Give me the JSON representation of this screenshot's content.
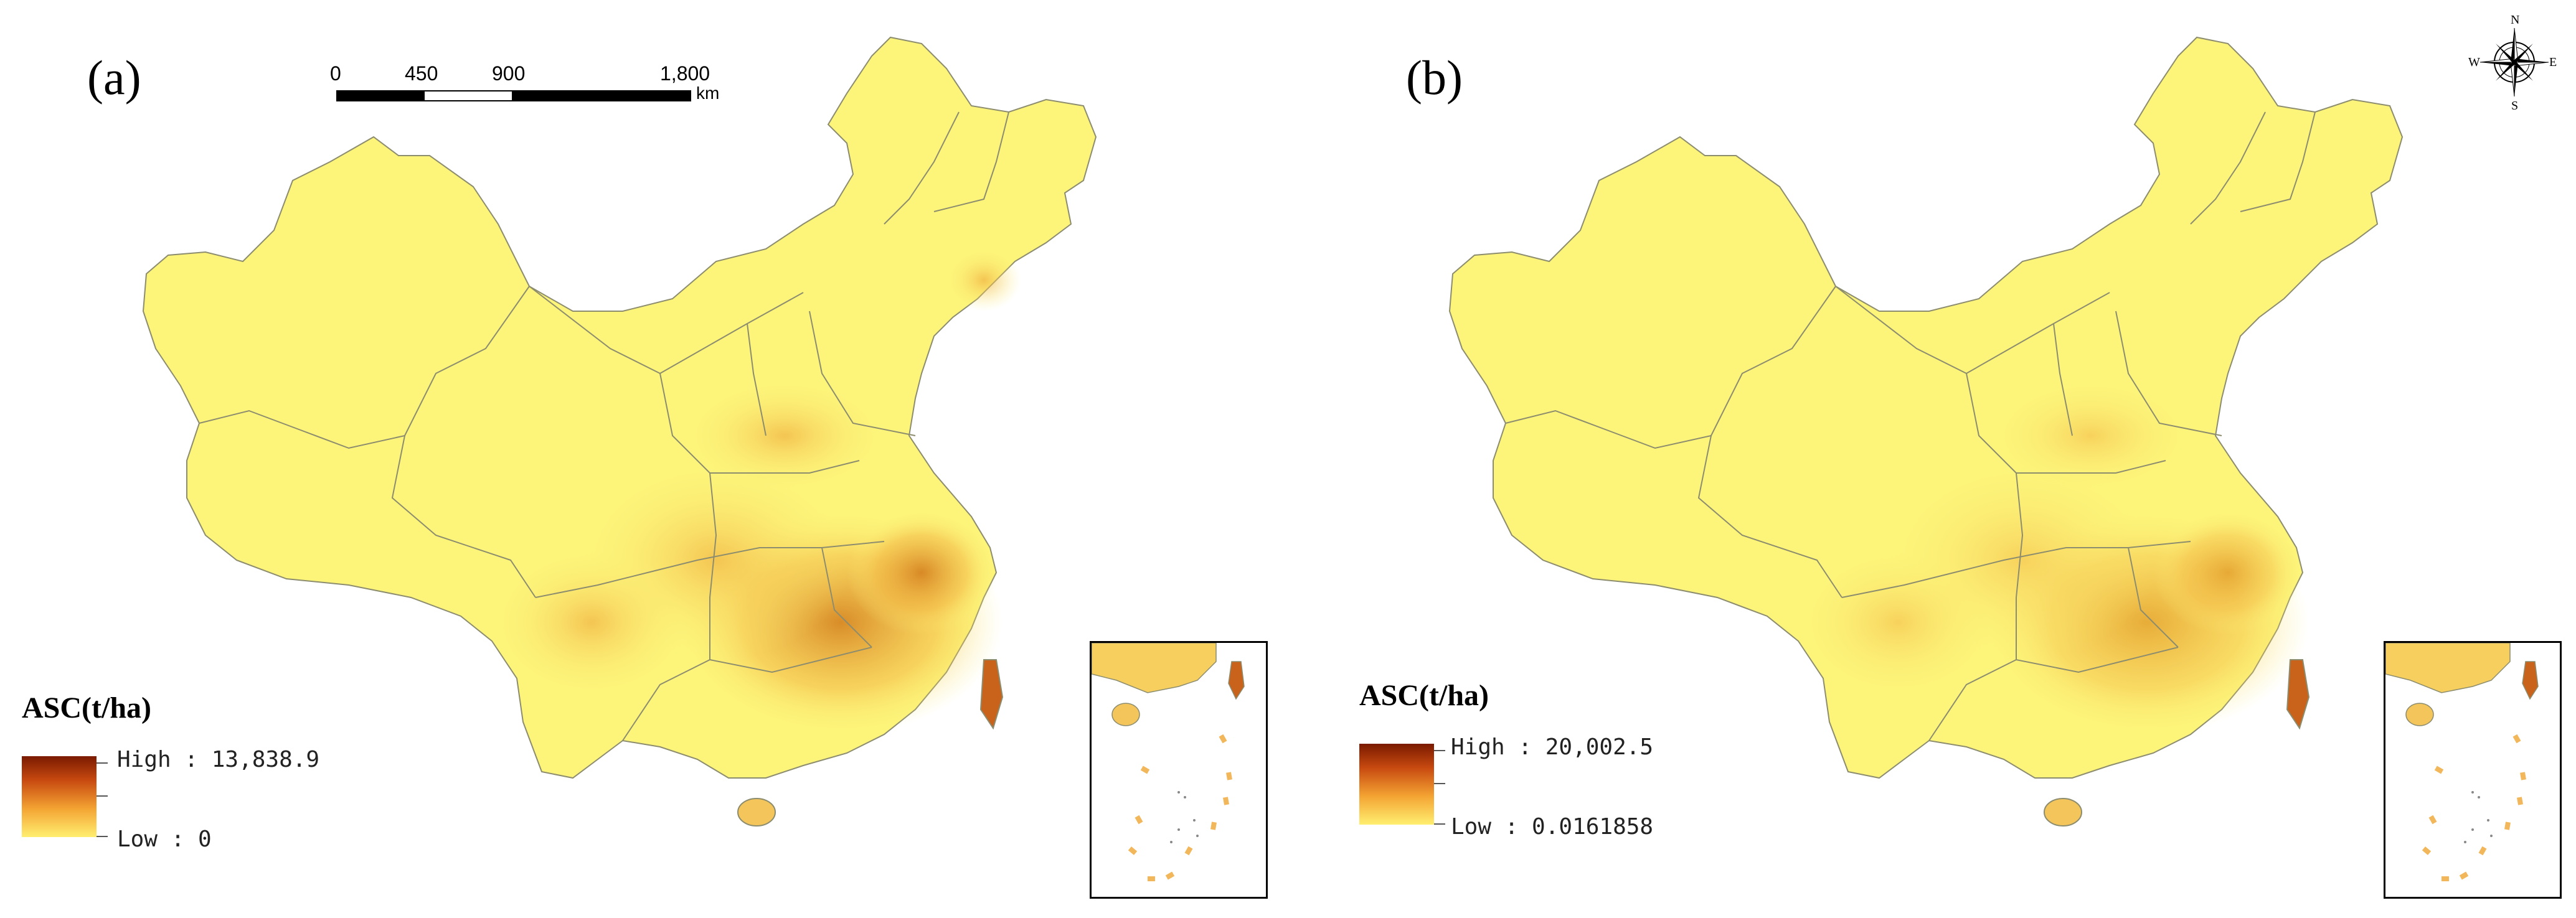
{
  "panels": [
    {
      "label": "(a)",
      "legend": {
        "title": "ASC(t/ha)",
        "high_label": "High : 13,838.9",
        "low_label": "Low : 0"
      }
    },
    {
      "label": "(b)",
      "legend": {
        "title": "ASC(t/ha)",
        "high_label": "High : 20,002.5",
        "low_label": "Low : 0.0161858"
      }
    }
  ],
  "scale_bar": {
    "ticks": [
      "0",
      "450",
      "900",
      "1,800"
    ],
    "unit": "km"
  },
  "compass": {
    "n": "N",
    "s": "S",
    "e": "E",
    "w": "W"
  },
  "colors": {
    "low": "#ffef70",
    "mid": "#f4a433",
    "high": "#7a1a00",
    "land": "#fdf47a",
    "boundary": "#8c8c6e"
  }
}
